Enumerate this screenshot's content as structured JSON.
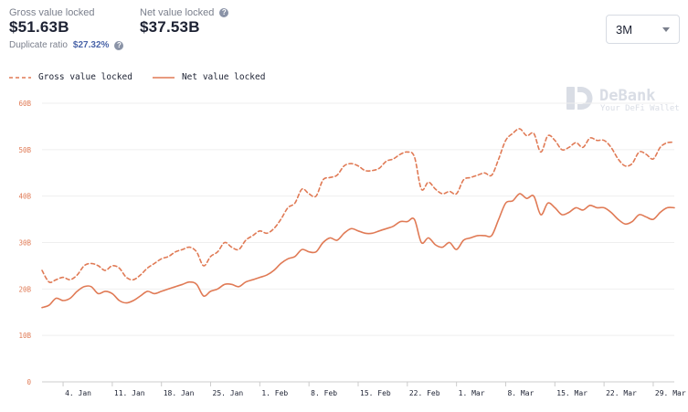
{
  "header": {
    "gross_label": "Gross value locked",
    "gross_value": "$51.63B",
    "net_label": "Net value locked",
    "net_value": "$37.53B",
    "ratio_label": "Duplicate ratio",
    "ratio_value": "$27.32%",
    "help_glyph": "?"
  },
  "range_select": {
    "value": "3M"
  },
  "watermark": {
    "brand": "DeBank",
    "tagline": "Your DeFi Wallet"
  },
  "colors": {
    "accent": "#e07a55",
    "grid": "#efefef",
    "text": "#1d2233",
    "muted": "#7a7f8c",
    "watermark": "#d9dde5"
  },
  "chart_data": {
    "type": "line",
    "x_ticks": [
      "4. Jan",
      "11. Jan",
      "18. Jan",
      "25. Jan",
      "1. Feb",
      "8. Feb",
      "15. Feb",
      "22. Feb",
      "1. Mar",
      "8. Mar",
      "15. Mar",
      "22. Mar",
      "29. Mar"
    ],
    "y_ticks": [
      "0",
      "10B",
      "20B",
      "30B",
      "40B",
      "50B",
      "60B"
    ],
    "ylim": [
      0,
      60
    ],
    "x_start": "2021-01-01",
    "x_end": "2021-04-01",
    "grid": true,
    "legend_position": "top-left",
    "series": [
      {
        "name": "Gross value locked",
        "style": "dashed",
        "points": [
          [
            "2021-01-01",
            24.0
          ],
          [
            "2021-01-02",
            21.5
          ],
          [
            "2021-01-03",
            22.0
          ],
          [
            "2021-01-04",
            22.5
          ],
          [
            "2021-01-05",
            22.0
          ],
          [
            "2021-01-06",
            23.0
          ],
          [
            "2021-01-07",
            25.0
          ],
          [
            "2021-01-08",
            25.5
          ],
          [
            "2021-01-09",
            25.0
          ],
          [
            "2021-01-10",
            24.0
          ],
          [
            "2021-01-11",
            25.0
          ],
          [
            "2021-01-12",
            24.5
          ],
          [
            "2021-01-13",
            22.5
          ],
          [
            "2021-01-14",
            22.0
          ],
          [
            "2021-01-15",
            23.0
          ],
          [
            "2021-01-16",
            24.5
          ],
          [
            "2021-01-17",
            25.5
          ],
          [
            "2021-01-18",
            26.5
          ],
          [
            "2021-01-19",
            27.0
          ],
          [
            "2021-01-20",
            28.0
          ],
          [
            "2021-01-21",
            28.5
          ],
          [
            "2021-01-22",
            29.0
          ],
          [
            "2021-01-23",
            28.0
          ],
          [
            "2021-01-24",
            25.0
          ],
          [
            "2021-01-25",
            27.0
          ],
          [
            "2021-01-26",
            28.0
          ],
          [
            "2021-01-27",
            30.0
          ],
          [
            "2021-01-28",
            29.0
          ],
          [
            "2021-01-29",
            28.5
          ],
          [
            "2021-01-30",
            30.5
          ],
          [
            "2021-01-31",
            31.5
          ],
          [
            "2021-02-01",
            32.5
          ],
          [
            "2021-02-02",
            32.0
          ],
          [
            "2021-02-03",
            33.0
          ],
          [
            "2021-02-04",
            35.0
          ],
          [
            "2021-02-05",
            37.5
          ],
          [
            "2021-02-06",
            38.5
          ],
          [
            "2021-02-07",
            41.5
          ],
          [
            "2021-02-08",
            40.5
          ],
          [
            "2021-02-09",
            40.0
          ],
          [
            "2021-02-10",
            43.5
          ],
          [
            "2021-02-11",
            44.0
          ],
          [
            "2021-02-12",
            44.5
          ],
          [
            "2021-02-13",
            46.5
          ],
          [
            "2021-02-14",
            47.0
          ],
          [
            "2021-02-15",
            46.5
          ],
          [
            "2021-02-16",
            45.5
          ],
          [
            "2021-02-17",
            45.5
          ],
          [
            "2021-02-18",
            46.0
          ],
          [
            "2021-02-19",
            47.5
          ],
          [
            "2021-02-20",
            48.0
          ],
          [
            "2021-02-21",
            49.0
          ],
          [
            "2021-02-22",
            49.5
          ],
          [
            "2021-02-23",
            48.5
          ],
          [
            "2021-02-24",
            41.5
          ],
          [
            "2021-02-25",
            43.0
          ],
          [
            "2021-02-26",
            41.5
          ],
          [
            "2021-02-27",
            40.5
          ],
          [
            "2021-02-28",
            41.0
          ],
          [
            "2021-03-01",
            40.5
          ],
          [
            "2021-03-02",
            43.5
          ],
          [
            "2021-03-03",
            44.0
          ],
          [
            "2021-03-04",
            44.5
          ],
          [
            "2021-03-05",
            45.0
          ],
          [
            "2021-03-06",
            44.5
          ],
          [
            "2021-03-07",
            48.0
          ],
          [
            "2021-03-08",
            52.0
          ],
          [
            "2021-03-09",
            53.5
          ],
          [
            "2021-03-10",
            54.5
          ],
          [
            "2021-03-11",
            53.0
          ],
          [
            "2021-03-12",
            53.5
          ],
          [
            "2021-03-13",
            49.5
          ],
          [
            "2021-03-14",
            53.0
          ],
          [
            "2021-03-15",
            52.0
          ],
          [
            "2021-03-16",
            50.0
          ],
          [
            "2021-03-17",
            50.5
          ],
          [
            "2021-03-18",
            51.5
          ],
          [
            "2021-03-19",
            50.5
          ],
          [
            "2021-03-20",
            52.5
          ],
          [
            "2021-03-21",
            52.0
          ],
          [
            "2021-03-22",
            52.0
          ],
          [
            "2021-03-23",
            50.5
          ],
          [
            "2021-03-24",
            48.0
          ],
          [
            "2021-03-25",
            46.5
          ],
          [
            "2021-03-26",
            47.0
          ],
          [
            "2021-03-27",
            49.5
          ],
          [
            "2021-03-28",
            49.0
          ],
          [
            "2021-03-29",
            48.0
          ],
          [
            "2021-03-30",
            50.5
          ],
          [
            "2021-03-31",
            51.5
          ],
          [
            "2021-04-01",
            51.6
          ]
        ]
      },
      {
        "name": "Net value locked",
        "style": "solid",
        "points": [
          [
            "2021-01-01",
            16.0
          ],
          [
            "2021-01-02",
            16.5
          ],
          [
            "2021-01-03",
            18.0
          ],
          [
            "2021-01-04",
            17.5
          ],
          [
            "2021-01-05",
            18.0
          ],
          [
            "2021-01-06",
            19.5
          ],
          [
            "2021-01-07",
            20.5
          ],
          [
            "2021-01-08",
            20.5
          ],
          [
            "2021-01-09",
            19.0
          ],
          [
            "2021-01-10",
            19.5
          ],
          [
            "2021-01-11",
            19.0
          ],
          [
            "2021-01-12",
            17.5
          ],
          [
            "2021-01-13",
            17.0
          ],
          [
            "2021-01-14",
            17.5
          ],
          [
            "2021-01-15",
            18.5
          ],
          [
            "2021-01-16",
            19.5
          ],
          [
            "2021-01-17",
            19.0
          ],
          [
            "2021-01-18",
            19.5
          ],
          [
            "2021-01-19",
            20.0
          ],
          [
            "2021-01-20",
            20.5
          ],
          [
            "2021-01-21",
            21.0
          ],
          [
            "2021-01-22",
            21.5
          ],
          [
            "2021-01-23",
            21.0
          ],
          [
            "2021-01-24",
            18.5
          ],
          [
            "2021-01-25",
            19.5
          ],
          [
            "2021-01-26",
            20.0
          ],
          [
            "2021-01-27",
            21.0
          ],
          [
            "2021-01-28",
            21.0
          ],
          [
            "2021-01-29",
            20.5
          ],
          [
            "2021-01-30",
            21.5
          ],
          [
            "2021-01-31",
            22.0
          ],
          [
            "2021-02-01",
            22.5
          ],
          [
            "2021-02-02",
            23.0
          ],
          [
            "2021-02-03",
            24.0
          ],
          [
            "2021-02-04",
            25.5
          ],
          [
            "2021-02-05",
            26.5
          ],
          [
            "2021-02-06",
            27.0
          ],
          [
            "2021-02-07",
            28.5
          ],
          [
            "2021-02-08",
            28.0
          ],
          [
            "2021-02-09",
            28.0
          ],
          [
            "2021-02-10",
            30.0
          ],
          [
            "2021-02-11",
            31.0
          ],
          [
            "2021-02-12",
            30.5
          ],
          [
            "2021-02-13",
            32.0
          ],
          [
            "2021-02-14",
            33.0
          ],
          [
            "2021-02-15",
            32.5
          ],
          [
            "2021-02-16",
            32.0
          ],
          [
            "2021-02-17",
            32.0
          ],
          [
            "2021-02-18",
            32.5
          ],
          [
            "2021-02-19",
            33.0
          ],
          [
            "2021-02-20",
            33.5
          ],
          [
            "2021-02-21",
            34.5
          ],
          [
            "2021-02-22",
            34.5
          ],
          [
            "2021-02-23",
            35.0
          ],
          [
            "2021-02-24",
            30.0
          ],
          [
            "2021-02-25",
            31.0
          ],
          [
            "2021-02-26",
            29.5
          ],
          [
            "2021-02-27",
            29.0
          ],
          [
            "2021-02-28",
            30.0
          ],
          [
            "2021-03-01",
            28.5
          ],
          [
            "2021-03-02",
            30.5
          ],
          [
            "2021-03-03",
            31.0
          ],
          [
            "2021-03-04",
            31.5
          ],
          [
            "2021-03-05",
            31.5
          ],
          [
            "2021-03-06",
            31.5
          ],
          [
            "2021-03-07",
            35.0
          ],
          [
            "2021-03-08",
            38.5
          ],
          [
            "2021-03-09",
            39.0
          ],
          [
            "2021-03-10",
            40.5
          ],
          [
            "2021-03-11",
            39.5
          ],
          [
            "2021-03-12",
            40.0
          ],
          [
            "2021-03-13",
            36.0
          ],
          [
            "2021-03-14",
            38.5
          ],
          [
            "2021-03-15",
            37.5
          ],
          [
            "2021-03-16",
            36.0
          ],
          [
            "2021-03-17",
            36.5
          ],
          [
            "2021-03-18",
            37.5
          ],
          [
            "2021-03-19",
            37.0
          ],
          [
            "2021-03-20",
            38.0
          ],
          [
            "2021-03-21",
            37.5
          ],
          [
            "2021-03-22",
            37.5
          ],
          [
            "2021-03-23",
            36.5
          ],
          [
            "2021-03-24",
            35.0
          ],
          [
            "2021-03-25",
            34.0
          ],
          [
            "2021-03-26",
            34.5
          ],
          [
            "2021-03-27",
            36.0
          ],
          [
            "2021-03-28",
            35.5
          ],
          [
            "2021-03-29",
            35.0
          ],
          [
            "2021-03-30",
            36.5
          ],
          [
            "2021-03-31",
            37.5
          ],
          [
            "2021-04-01",
            37.5
          ]
        ]
      }
    ]
  }
}
